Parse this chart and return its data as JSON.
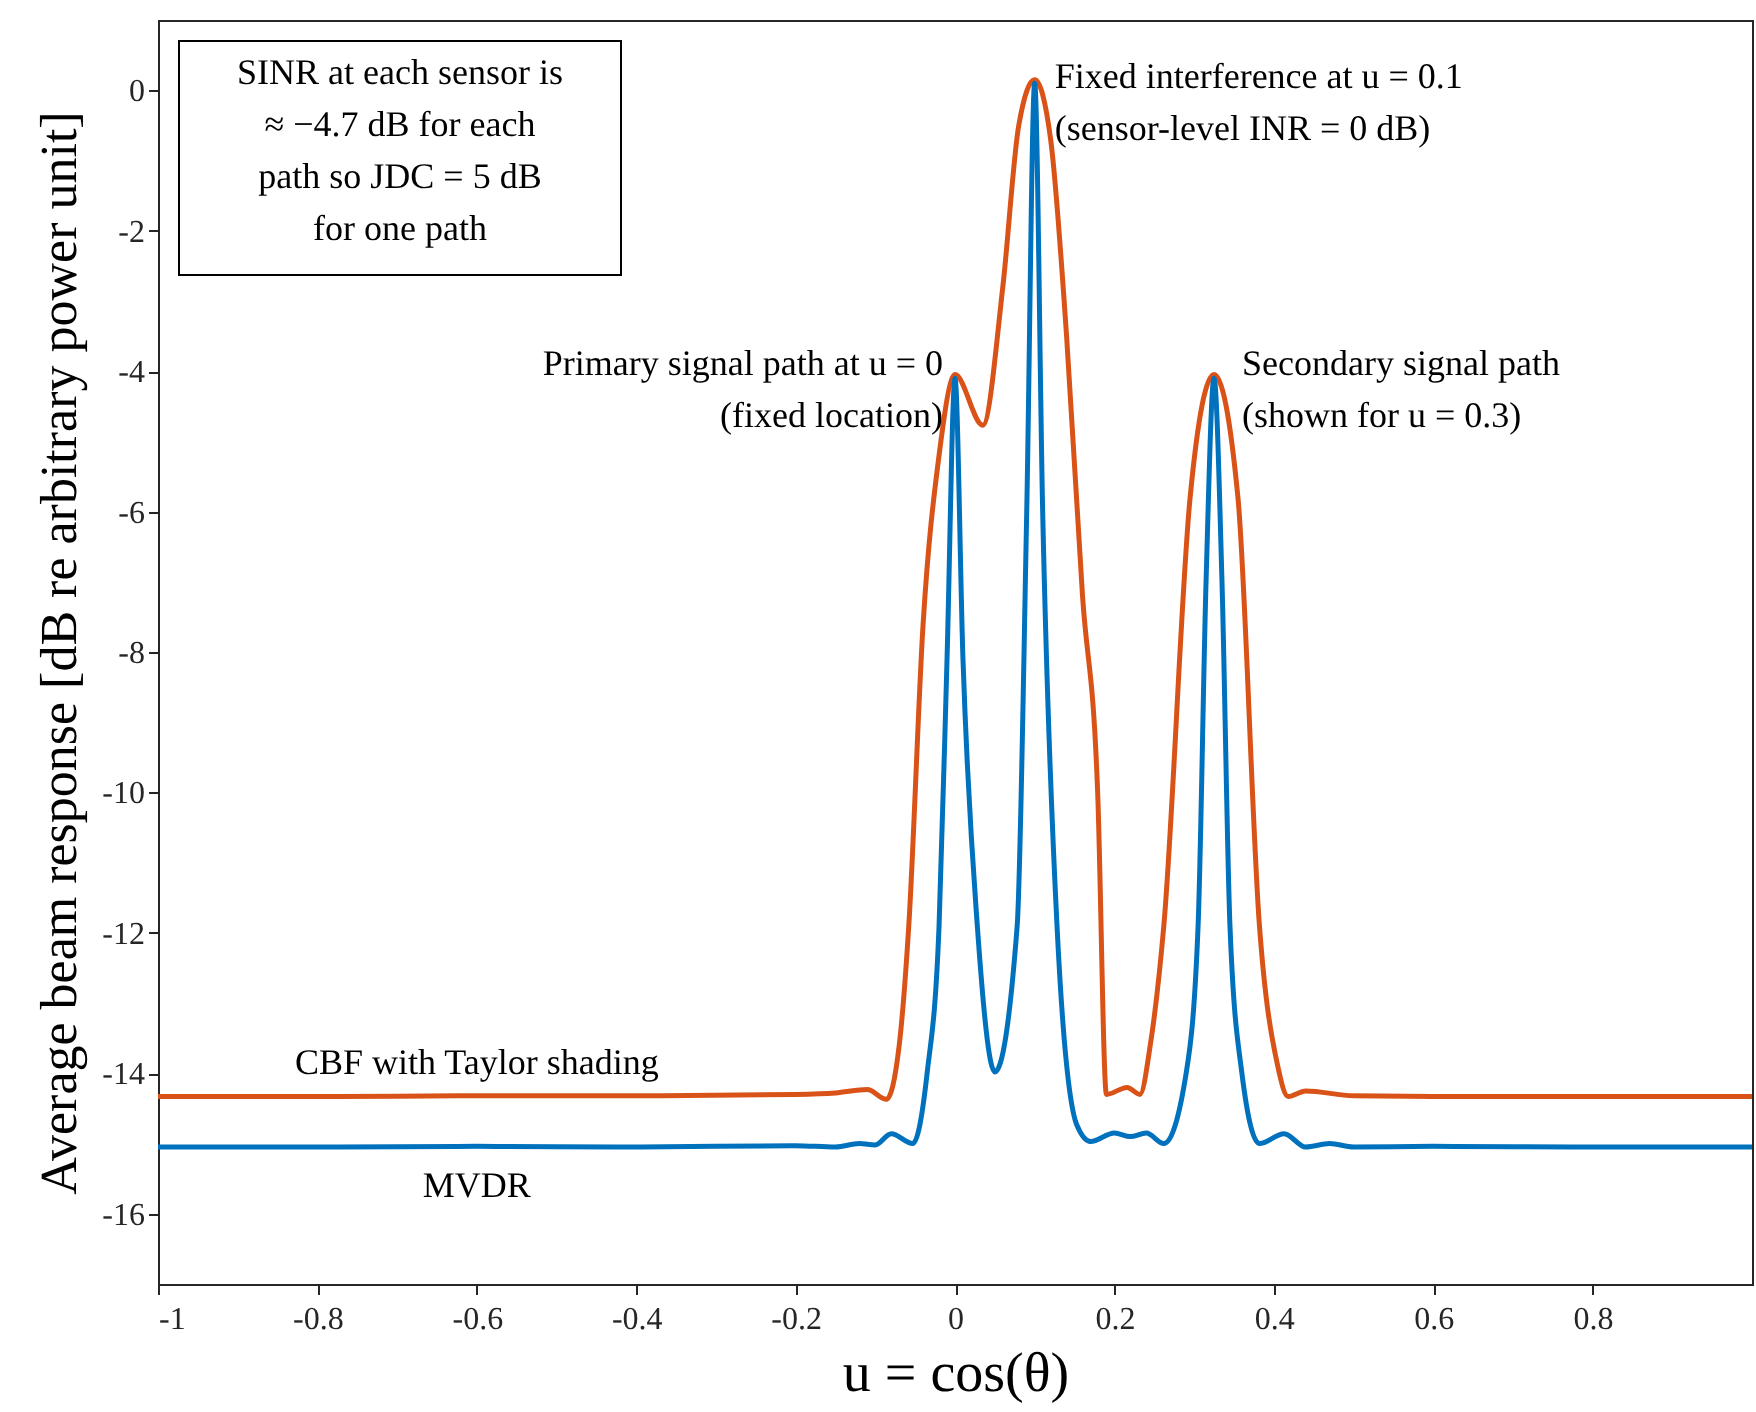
{
  "chart_data": {
    "type": "line",
    "xlabel": "u = cos(θ)",
    "ylabel": "Average beam response [dB re arbitrary power unit]",
    "xlim": [
      -1,
      1
    ],
    "ylim": [
      -17,
      1
    ],
    "xticks": [
      -1,
      -0.8,
      -0.6,
      -0.4,
      -0.2,
      0,
      0.2,
      0.4,
      0.6,
      0.8
    ],
    "yticks": [
      -16,
      -14,
      -12,
      -10,
      -8,
      -6,
      -4,
      -2,
      0
    ],
    "legend": false,
    "grid": false,
    "line_style": "solid",
    "marker": "none",
    "series": [
      {
        "name": "CBF with Taylor shading",
        "color": "#d95319",
        "x": [
          -1,
          -0.8,
          -0.6,
          -0.4,
          -0.2,
          -0.15,
          -0.11,
          -0.086,
          -0.07,
          -0.058,
          -0.04,
          -0.02,
          0,
          0.035,
          0.06,
          0.08,
          0.1,
          0.12,
          0.14,
          0.16,
          0.179,
          0.19,
          0.216,
          0.232,
          0.245,
          0.262,
          0.295,
          0.325,
          0.355,
          0.382,
          0.405,
          0.418,
          0.44,
          0.5,
          0.6,
          0.8,
          1
        ],
        "values": [
          -14.33,
          -14.33,
          -14.32,
          -14.32,
          -14.3,
          -14.28,
          -14.23,
          -14.37,
          -13.6,
          -11.9,
          -7.6,
          -5.2,
          -4.05,
          -4.77,
          -2.8,
          -0.5,
          0.15,
          -0.7,
          -3.5,
          -7.2,
          -10.0,
          -14.3,
          -14.2,
          -14.3,
          -13.6,
          -11.9,
          -5.8,
          -4.05,
          -5.8,
          -11.9,
          -13.9,
          -14.33,
          -14.25,
          -14.32,
          -14.33,
          -14.33,
          -14.33
        ]
      },
      {
        "name": "MVDR",
        "color": "#0072bd",
        "x": [
          -1,
          -0.8,
          -0.6,
          -0.4,
          -0.2,
          -0.15,
          -0.12,
          -0.1,
          -0.08,
          -0.053,
          -0.035,
          -0.02,
          -0.01,
          0,
          0.01,
          0.028,
          0.05,
          0.078,
          0.09,
          0.1,
          0.11,
          0.128,
          0.153,
          0.17,
          0.2,
          0.22,
          0.24,
          0.262,
          0.29,
          0.305,
          0.315,
          0.325,
          0.335,
          0.345,
          0.36,
          0.382,
          0.413,
          0.44,
          0.47,
          0.5,
          0.6,
          0.8,
          1
        ],
        "values": [
          -15.05,
          -15.05,
          -15.04,
          -15.05,
          -15.03,
          -15.05,
          -15.0,
          -15.02,
          -14.86,
          -15.0,
          -14.0,
          -11.9,
          -8.1,
          -4.1,
          -8.1,
          -11.9,
          -13.98,
          -11.9,
          -6.0,
          0.1,
          -6.0,
          -11.9,
          -14.74,
          -14.97,
          -14.85,
          -14.9,
          -14.85,
          -15.0,
          -14.0,
          -11.9,
          -7.0,
          -4.1,
          -7.0,
          -11.9,
          -14.0,
          -15.0,
          -14.86,
          -15.05,
          -15.0,
          -15.05,
          -15.04,
          -15.05,
          -15.05
        ]
      }
    ],
    "annotations": [
      "SINR at each sensor is\n≈ −4.7 dB for each\npath so JDC = 5 dB\nfor one path",
      {
        "text": "Primary signal path at u = 0\n(fixed location)",
        "x": 0,
        "y": -4.05
      },
      {
        "text": "Fixed interference at u = 0.1\n(sensor-level INR = 0 dB)",
        "x": 0.1,
        "y": 0.15
      },
      {
        "text": "Secondary signal path\n(shown for u = 0.3)",
        "x": 0.325,
        "y": -4.05
      }
    ]
  }
}
